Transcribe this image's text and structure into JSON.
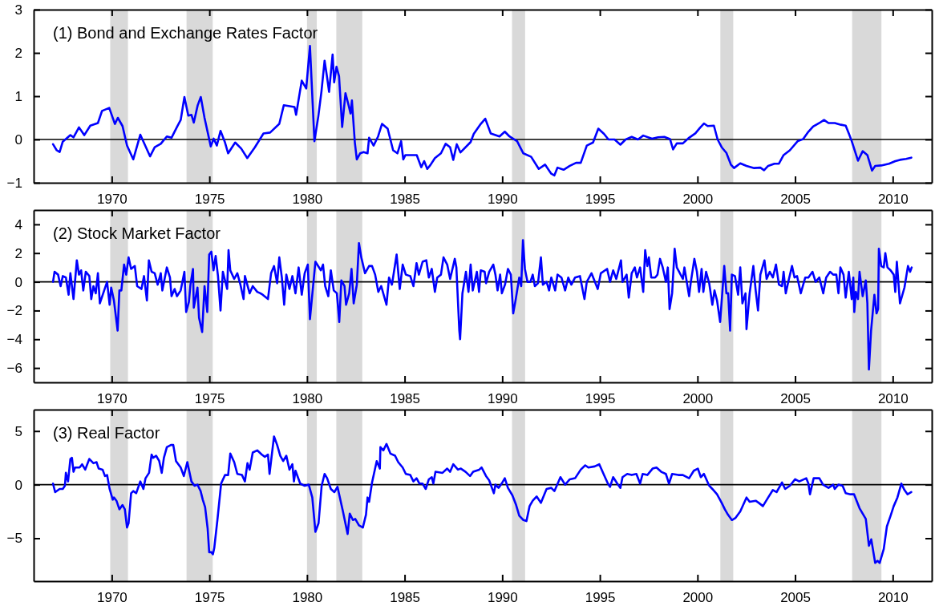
{
  "chart_data": [
    {
      "type": "line",
      "title": "(1) Bond and Exchange Rates Factor",
      "xlim": [
        1966,
        2012
      ],
      "xticks": [
        1970,
        1975,
        1980,
        1985,
        1990,
        1995,
        2000,
        2005,
        2010
      ],
      "ylim": [
        -1,
        3
      ],
      "yticks": [
        -1,
        0,
        1,
        2,
        3
      ],
      "grid": false,
      "marker": "none",
      "line_style": "solid",
      "color": "#0000ff",
      "ref_lines": [
        {
          "axis": "y",
          "value": 0,
          "color": "#000000"
        }
      ],
      "bands": [
        {
          "axis": "x",
          "from": 1969.92,
          "to": 1970.83,
          "color": "#d9d9d9"
        },
        {
          "axis": "x",
          "from": 1973.83,
          "to": 1975.17,
          "color": "#d9d9d9"
        },
        {
          "axis": "x",
          "from": 1980.0,
          "to": 1980.5,
          "color": "#d9d9d9"
        },
        {
          "axis": "x",
          "from": 1981.5,
          "to": 1982.83,
          "color": "#d9d9d9"
        },
        {
          "axis": "x",
          "from": 1990.5,
          "to": 1991.17,
          "color": "#d9d9d9"
        },
        {
          "axis": "x",
          "from": 2001.17,
          "to": 2001.83,
          "color": "#d9d9d9"
        },
        {
          "axis": "x",
          "from": 2007.92,
          "to": 2009.42,
          "color": "#d9d9d9"
        }
      ],
      "x": [
        1966.99,
        1967.18,
        1967.33,
        1967.49,
        1967.88,
        1968.04,
        1968.32,
        1968.59,
        1968.9,
        1969.29,
        1969.5,
        1969.87,
        1970.16,
        1970.31,
        1970.55,
        1970.78,
        1971.1,
        1971.46,
        1971.96,
        1972.2,
        1972.51,
        1972.82,
        1973.06,
        1973.34,
        1973.53,
        1973.72,
        1973.92,
        1974.08,
        1974.2,
        1974.4,
        1974.56,
        1974.75,
        1975.07,
        1975.22,
        1975.38,
        1975.57,
        1975.8,
        1975.96,
        1976.32,
        1976.63,
        1976.94,
        1977.33,
        1977.77,
        1978.11,
        1978.58,
        1978.81,
        1979.36,
        1979.44,
        1979.73,
        1979.96,
        1980.15,
        1980.38,
        1980.58,
        1980.74,
        1980.9,
        1981.02,
        1981.13,
        1981.31,
        1981.39,
        1981.51,
        1981.64,
        1981.8,
        1981.97,
        1982.13,
        1982.23,
        1982.3,
        1982.45,
        1982.55,
        1982.72,
        1982.9,
        1983.1,
        1983.18,
        1983.41,
        1983.64,
        1983.84,
        1984.13,
        1984.41,
        1984.63,
        1984.82,
        1984.93,
        1985.04,
        1985.31,
        1985.62,
        1985.85,
        1986.0,
        1986.16,
        1986.32,
        1986.55,
        1986.86,
        1987.1,
        1987.33,
        1987.49,
        1987.67,
        1987.86,
        1988.38,
        1988.54,
        1988.9,
        1989.13,
        1989.41,
        1989.86,
        1990.13,
        1990.37,
        1990.76,
        1991.08,
        1991.48,
        1991.87,
        1992.19,
        1992.51,
        1992.67,
        1992.83,
        1993.14,
        1993.46,
        1993.78,
        1994.02,
        1994.33,
        1994.65,
        1994.92,
        1995.21,
        1995.44,
        1995.75,
        1996.05,
        1996.32,
        1996.63,
        1996.95,
        1997.22,
        1997.67,
        1997.98,
        1998.3,
        1998.59,
        1998.75,
        1998.94,
        1999.25,
        1999.57,
        1999.89,
        2000.13,
        2000.33,
        2000.52,
        2000.84,
        2001.03,
        2001.24,
        2001.48,
        2001.71,
        2001.87,
        2002.19,
        2002.51,
        2002.9,
        2003.22,
        2003.41,
        2003.62,
        2003.94,
        2004.17,
        2004.41,
        2004.73,
        2005.13,
        2005.41,
        2005.68,
        2005.92,
        2006.24,
        2006.48,
        2006.71,
        2007.03,
        2007.35,
        2007.59,
        2007.75,
        2007.9,
        2008.22,
        2008.46,
        2008.7,
        2008.94,
        2009.1,
        2009.41,
        2009.81,
        2010.13,
        2010.37,
        2010.68,
        2010.95
      ],
      "values": [
        -0.11,
        -0.25,
        -0.29,
        -0.05,
        0.1,
        0.05,
        0.28,
        0.1,
        0.32,
        0.38,
        0.66,
        0.73,
        0.36,
        0.5,
        0.31,
        -0.14,
        -0.46,
        0.11,
        -0.39,
        -0.18,
        -0.1,
        0.07,
        0.04,
        0.29,
        0.45,
        0.98,
        0.55,
        0.57,
        0.39,
        0.79,
        0.98,
        0.5,
        -0.16,
        0.02,
        -0.14,
        0.2,
        -0.07,
        -0.32,
        -0.07,
        -0.21,
        -0.43,
        -0.18,
        0.14,
        0.16,
        0.36,
        0.79,
        0.75,
        0.57,
        1.36,
        1.18,
        2.16,
        -0.04,
        0.54,
        1.11,
        1.82,
        1.46,
        1.1,
        1.96,
        1.32,
        1.68,
        1.46,
        0.29,
        1.07,
        0.79,
        0.6,
        0.9,
        -0.07,
        -0.46,
        -0.32,
        -0.29,
        -0.32,
        0.04,
        -0.14,
        0.07,
        0.36,
        0.25,
        -0.25,
        -0.32,
        -0.04,
        -0.46,
        -0.36,
        -0.36,
        -0.36,
        -0.64,
        -0.5,
        -0.68,
        -0.59,
        -0.43,
        -0.32,
        -0.1,
        -0.18,
        -0.47,
        -0.11,
        -0.3,
        -0.06,
        0.13,
        0.36,
        0.48,
        0.14,
        0.07,
        0.18,
        0.07,
        -0.04,
        -0.32,
        -0.4,
        -0.68,
        -0.58,
        -0.79,
        -0.83,
        -0.65,
        -0.7,
        -0.61,
        -0.54,
        -0.54,
        -0.14,
        -0.07,
        0.25,
        0.13,
        0,
        0,
        -0.12,
        0,
        0.06,
        0,
        0.09,
        0.02,
        0.05,
        0.06,
        0.01,
        -0.23,
        -0.09,
        -0.09,
        0.04,
        0.14,
        0.27,
        0.37,
        0.31,
        0.32,
        0,
        -0.18,
        -0.31,
        -0.58,
        -0.66,
        -0.55,
        -0.61,
        -0.66,
        -0.65,
        -0.71,
        -0.61,
        -0.56,
        -0.56,
        -0.36,
        -0.25,
        -0.04,
        0.01,
        0.18,
        0.3,
        0.38,
        0.45,
        0.38,
        0.38,
        0.34,
        0.32,
        0.14,
        -0.04,
        -0.49,
        -0.27,
        -0.36,
        -0.72,
        -0.61,
        -0.6,
        -0.56,
        -0.5,
        -0.47,
        -0.45,
        -0.42
      ]
    },
    {
      "type": "line",
      "title": "(2) Stock Market Factor",
      "xlim": [
        1966,
        2012
      ],
      "xticks": [
        1970,
        1975,
        1980,
        1985,
        1990,
        1995,
        2000,
        2005,
        2010
      ],
      "ylim": [
        -7,
        5
      ],
      "yticks": [
        -6,
        -4,
        -2,
        0,
        2,
        4
      ],
      "grid": false,
      "marker": "none",
      "line_style": "solid",
      "color": "#0000ff",
      "ref_lines": [
        {
          "axis": "y",
          "value": 0,
          "color": "#000000"
        }
      ],
      "bands": [
        {
          "axis": "x",
          "from": 1969.92,
          "to": 1970.83,
          "color": "#d9d9d9"
        },
        {
          "axis": "x",
          "from": 1973.83,
          "to": 1975.17,
          "color": "#d9d9d9"
        },
        {
          "axis": "x",
          "from": 1980.0,
          "to": 1980.5,
          "color": "#d9d9d9"
        },
        {
          "axis": "x",
          "from": 1981.5,
          "to": 1982.83,
          "color": "#d9d9d9"
        },
        {
          "axis": "x",
          "from": 1990.5,
          "to": 1991.17,
          "color": "#d9d9d9"
        },
        {
          "axis": "x",
          "from": 2001.17,
          "to": 2001.83,
          "color": "#d9d9d9"
        },
        {
          "axis": "x",
          "from": 2007.92,
          "to": 2009.42,
          "color": "#d9d9d9"
        }
      ],
      "x": [
        1966.99,
        1967.07,
        1967.25,
        1967.38,
        1967.49,
        1967.65,
        1967.79,
        1967.88,
        1968.04,
        1968.21,
        1968.32,
        1968.43,
        1968.54,
        1968.67,
        1968.85,
        1968.95,
        1969.06,
        1969.18,
        1969.29,
        1969.39,
        1969.61,
        1969.76,
        1969.89,
        1969.97,
        1970.11,
        1970.3,
        1970.39,
        1970.49,
        1970.63,
        1970.74,
        1970.86,
        1970.99,
        1971.18,
        1971.3,
        1971.52,
        1971.65,
        1971.8,
        1971.9,
        1972.04,
        1972.2,
        1972.35,
        1972.51,
        1972.59,
        1972.82,
        1972.98,
        1973.06,
        1973.22,
        1973.34,
        1973.53,
        1973.72,
        1973.81,
        1973.95,
        1974.03,
        1974.16,
        1974.2,
        1974.39,
        1974.47,
        1974.63,
        1974.75,
        1974.89,
        1974.99,
        1975.1,
        1975.21,
        1975.32,
        1975.44,
        1975.57,
        1975.69,
        1975.91,
        1975.98,
        1976.07,
        1976.27,
        1976.43,
        1976.59,
        1976.75,
        1976.82,
        1977.06,
        1977.22,
        1977.45,
        1977.61,
        1977.73,
        1978.0,
        1978.16,
        1978.31,
        1978.47,
        1978.58,
        1978.71,
        1978.83,
        1978.94,
        1979.1,
        1979.25,
        1979.41,
        1979.57,
        1979.73,
        1979.88,
        1980.04,
        1980.15,
        1980.43,
        1980.71,
        1980.82,
        1980.93,
        1981.09,
        1981.22,
        1981.37,
        1981.53,
        1981.65,
        1981.76,
        1981.92,
        1982.0,
        1982.16,
        1982.28,
        1982.39,
        1982.55,
        1982.66,
        1982.78,
        1982.97,
        1983.18,
        1983.33,
        1983.49,
        1983.65,
        1983.8,
        1984.07,
        1984.2,
        1984.35,
        1984.59,
        1984.75,
        1984.9,
        1985.06,
        1985.29,
        1985.45,
        1985.61,
        1985.73,
        1985.92,
        1986.11,
        1986.24,
        1986.39,
        1986.55,
        1986.67,
        1986.86,
        1986.99,
        1987.18,
        1987.33,
        1987.57,
        1987.65,
        1987.8,
        1987.84,
        1987.96,
        1988.14,
        1988.27,
        1988.38,
        1988.49,
        1988.7,
        1988.81,
        1988.9,
        1989.1,
        1989.17,
        1989.33,
        1989.54,
        1989.65,
        1989.76,
        1989.89,
        1989.98,
        1990.14,
        1990.29,
        1990.44,
        1990.56,
        1990.68,
        1990.87,
        1990.97,
        1991.06,
        1991.16,
        1991.29,
        1991.44,
        1991.56,
        1991.67,
        1991.83,
        1991.98,
        1992.08,
        1992.27,
        1992.4,
        1992.51,
        1992.71,
        1992.83,
        1993.03,
        1993.22,
        1993.38,
        1993.54,
        1993.73,
        1993.98,
        1994.21,
        1994.33,
        1994.57,
        1994.89,
        1995.05,
        1995.37,
        1995.52,
        1995.68,
        1995.84,
        1996.08,
        1996.16,
        1996.37,
        1996.48,
        1996.63,
        1996.79,
        1996.9,
        1997.06,
        1997.22,
        1997.32,
        1997.43,
        1997.51,
        1997.63,
        1997.83,
        1997.95,
        1998.08,
        1998.22,
        1998.38,
        1998.48,
        1998.57,
        1998.7,
        1998.83,
        1998.94,
        1999.06,
        1999.25,
        1999.33,
        1999.57,
        1999.65,
        1999.84,
        1999.97,
        2000.08,
        2000.21,
        2000.3,
        2000.44,
        2000.6,
        2000.76,
        2000.87,
        2001.0,
        2001.16,
        2001.37,
        2001.48,
        2001.57,
        2001.67,
        2001.76,
        2001.92,
        2002.08,
        2002.19,
        2002.3,
        2002.46,
        2002.51,
        2002.67,
        2002.86,
        2002.98,
        2003.1,
        2003.22,
        2003.43,
        2003.54,
        2003.7,
        2003.86,
        2004.02,
        2004.17,
        2004.33,
        2004.41,
        2004.52,
        2004.65,
        2004.84,
        2004.97,
        2005.1,
        2005.29,
        2005.52,
        2005.68,
        2005.89,
        2006.05,
        2006.24,
        2006.44,
        2006.59,
        2006.79,
        2006.95,
        2007.11,
        2007.22,
        2007.32,
        2007.48,
        2007.59,
        2007.75,
        2007.9,
        2007.98,
        2008.03,
        2008.11,
        2008.22,
        2008.3,
        2008.46,
        2008.62,
        2008.7,
        2008.78,
        2008.89,
        2009.06,
        2009.17,
        2009.25,
        2009.29,
        2009.41,
        2009.54,
        2009.62,
        2009.73,
        2009.89,
        2010.05,
        2010.13,
        2010.21,
        2010.37,
        2010.6,
        2010.78,
        2010.89,
        2010.97
      ],
      "values": [
        0.0,
        0.7,
        0.5,
        -0.3,
        0.4,
        0.3,
        -0.9,
        0.6,
        -1.2,
        1.5,
        0.5,
        0.8,
        -0.6,
        0.7,
        0.4,
        -1.2,
        -0.3,
        -0.8,
        0.6,
        -1.5,
        -0.6,
        0.0,
        -1.6,
        -0.4,
        -1.3,
        -3.4,
        -0.6,
        -0.6,
        1.2,
        0.5,
        1.7,
        0.9,
        1.1,
        -0.3,
        -0.5,
        0.4,
        -1.3,
        1.5,
        0.7,
        0.6,
        -0.2,
        0.6,
        -0.6,
        1.0,
        0.3,
        -1.0,
        -0.5,
        -1.0,
        -0.6,
        0.7,
        -2.1,
        -1.4,
        -0.2,
        0.9,
        -1.8,
        -0.4,
        -2.5,
        -3.5,
        -0.3,
        -2.1,
        1.9,
        2.1,
        0.8,
        1.8,
        0.4,
        -2.0,
        0.7,
        -0.5,
        2.2,
        0.8,
        0.2,
        0.6,
        -0.2,
        -1.2,
        0.4,
        -0.8,
        -0.3,
        -0.7,
        -0.8,
        -0.9,
        -1.2,
        0.6,
        1.1,
        -0.1,
        1.7,
        0.3,
        -1.6,
        0.5,
        -0.5,
        0.4,
        -0.8,
        1.0,
        -0.9,
        0.6,
        1.2,
        -2.6,
        1.4,
        0.8,
        1.2,
        -0.3,
        -1.0,
        0.8,
        -0.6,
        -0.8,
        -2.8,
        0.1,
        -0.3,
        -1.6,
        -0.8,
        0.9,
        -1.5,
        -0.2,
        2.7,
        1.7,
        0.6,
        1.1,
        1.1,
        0.5,
        -0.7,
        -0.3,
        -1.6,
        0.3,
        -0.2,
        1.9,
        -0.5,
        1.2,
        0.5,
        0.4,
        -0.3,
        1.3,
        0.5,
        1.4,
        1.5,
        0.3,
        0.9,
        -0.7,
        0.3,
        0.5,
        1.7,
        1.2,
        0.2,
        1.6,
        1.0,
        -3.4,
        -4.0,
        -0.8,
        0.7,
        -0.7,
        1.2,
        -0.6,
        0.7,
        -0.7,
        0.8,
        0.7,
        -0.1,
        0.7,
        1.2,
        0.5,
        -0.6,
        0.5,
        -0.8,
        -0.2,
        0.9,
        0.5,
        -2.2,
        -1.3,
        0.3,
        -0.3,
        2.9,
        0.9,
        0.0,
        0.0,
        0.5,
        -0.3,
        -0.1,
        1.7,
        -0.2,
        0.0,
        -0.6,
        0.3,
        -0.6,
        0.5,
        0.3,
        -0.6,
        0.3,
        -0.2,
        0.3,
        0.4,
        -1.2,
        0.0,
        0.6,
        -0.5,
        0.6,
        0.9,
        0.0,
        0.8,
        0.2,
        1.5,
        0.0,
        0.5,
        -1.1,
        0.6,
        1.0,
        0.3,
        1.0,
        -0.7,
        2.2,
        1.1,
        1.7,
        0.3,
        0.3,
        0.5,
        1.6,
        1.0,
        0.0,
        1.0,
        -1.9,
        -0.8,
        2.3,
        1.0,
        0.7,
        0.2,
        1.0,
        -1.0,
        -0.1,
        1.6,
        0.7,
        -0.7,
        0.9,
        -0.7,
        0.7,
        -0.1,
        -1.6,
        -0.6,
        -1.3,
        -2.8,
        1.1,
        -0.8,
        -0.8,
        -3.4,
        0.5,
        0.4,
        -0.9,
        1.0,
        -1.5,
        -0.8,
        -3.3,
        -0.8,
        1.1,
        -0.6,
        -2.0,
        0.5,
        1.5,
        0.2,
        0.7,
        0.3,
        1.2,
        -0.2,
        -0.3,
        0.7,
        -0.8,
        0.0,
        1.1,
        0.3,
        0.4,
        -0.8,
        0.3,
        0.3,
        0.7,
        0.0,
        0.3,
        -0.8,
        0.3,
        0.7,
        0.5,
        0.5,
        -0.8,
        1.0,
        0.5,
        -1.1,
        0.7,
        -1.2,
        0.3,
        -2.1,
        -0.7,
        -1.2,
        0.7,
        -1.0,
        0.1,
        -1.5,
        -6.1,
        -3.4,
        -0.9,
        -2.2,
        -1.9,
        2.3,
        1.1,
        1.0,
        2.0,
        1.0,
        0.8,
        0.5,
        -0.7,
        1.4,
        -1.5,
        -0.4,
        1.1,
        0.7,
        1.0
      ]
    },
    {
      "type": "line",
      "title": "(3) Real Factor",
      "xlim": [
        1966,
        2012
      ],
      "xticks": [
        1970,
        1975,
        1980,
        1985,
        1990,
        1995,
        2000,
        2005,
        2010
      ],
      "ylim": [
        -9,
        7
      ],
      "yticks": [
        -5,
        0,
        5
      ],
      "grid": false,
      "marker": "none",
      "line_style": "solid",
      "color": "#0000ff",
      "ref_lines": [
        {
          "axis": "y",
          "value": 0,
          "color": "#000000"
        }
      ],
      "bands": [
        {
          "axis": "x",
          "from": 1969.92,
          "to": 1970.83,
          "color": "#d9d9d9"
        },
        {
          "axis": "x",
          "from": 1973.83,
          "to": 1975.17,
          "color": "#d9d9d9"
        },
        {
          "axis": "x",
          "from": 1980.0,
          "to": 1980.5,
          "color": "#d9d9d9"
        },
        {
          "axis": "x",
          "from": 1981.5,
          "to": 1982.83,
          "color": "#d9d9d9"
        },
        {
          "axis": "x",
          "from": 1990.5,
          "to": 1991.17,
          "color": "#d9d9d9"
        },
        {
          "axis": "x",
          "from": 2001.17,
          "to": 2001.83,
          "color": "#d9d9d9"
        },
        {
          "axis": "x",
          "from": 2007.92,
          "to": 2009.42,
          "color": "#d9d9d9"
        }
      ],
      "x": [
        1966.99,
        1967.1,
        1967.33,
        1967.49,
        1967.6,
        1967.65,
        1967.76,
        1967.88,
        1967.96,
        1968.04,
        1968.12,
        1968.35,
        1968.48,
        1968.64,
        1968.85,
        1969.06,
        1969.22,
        1969.33,
        1969.53,
        1969.65,
        1969.76,
        1969.89,
        1970.05,
        1970.11,
        1970.24,
        1970.39,
        1970.55,
        1970.67,
        1970.78,
        1970.86,
        1970.99,
        1971.1,
        1971.25,
        1971.46,
        1971.62,
        1971.73,
        1971.91,
        1972.04,
        1972.12,
        1972.27,
        1972.43,
        1972.56,
        1972.67,
        1972.82,
        1973.03,
        1973.15,
        1973.29,
        1973.53,
        1973.69,
        1973.87,
        1974.08,
        1974.24,
        1974.39,
        1974.55,
        1974.66,
        1974.78,
        1974.91,
        1974.99,
        1975.1,
        1975.18,
        1975.25,
        1975.41,
        1975.6,
        1975.8,
        1975.96,
        1976.07,
        1976.27,
        1976.43,
        1976.67,
        1976.82,
        1976.95,
        1977.06,
        1977.22,
        1977.45,
        1977.69,
        1977.84,
        1978.0,
        1978.08,
        1978.31,
        1978.47,
        1978.63,
        1978.78,
        1978.94,
        1979.1,
        1979.25,
        1979.33,
        1979.41,
        1979.65,
        1979.88,
        1980.09,
        1980.27,
        1980.43,
        1980.59,
        1980.75,
        1980.9,
        1981.03,
        1981.22,
        1981.4,
        1981.56,
        1981.84,
        1982.08,
        1982.19,
        1982.35,
        1982.47,
        1982.66,
        1982.86,
        1983.02,
        1983.1,
        1983.18,
        1983.33,
        1983.57,
        1983.73,
        1983.76,
        1983.91,
        1984.07,
        1984.27,
        1984.51,
        1984.67,
        1984.9,
        1985.06,
        1985.29,
        1985.45,
        1985.61,
        1985.76,
        1985.92,
        1986.08,
        1986.24,
        1986.39,
        1986.47,
        1986.58,
        1986.94,
        1987.18,
        1987.33,
        1987.49,
        1987.73,
        1987.88,
        1988.12,
        1988.35,
        1988.51,
        1988.82,
        1988.94,
        1989.17,
        1989.33,
        1989.57,
        1989.65,
        1989.81,
        1989.97,
        1990.13,
        1990.29,
        1990.52,
        1990.71,
        1990.87,
        1991.08,
        1991.24,
        1991.4,
        1991.56,
        1991.76,
        1991.98,
        1992.27,
        1992.51,
        1992.67,
        1992.98,
        1993.22,
        1993.46,
        1993.73,
        1994.02,
        1994.25,
        1994.41,
        1994.73,
        1994.97,
        1995.21,
        1995.41,
        1995.52,
        1995.68,
        1995.89,
        1996.05,
        1996.16,
        1996.4,
        1996.63,
        1996.87,
        1997.06,
        1997.19,
        1997.43,
        1997.7,
        1997.9,
        1998.14,
        1998.38,
        1998.54,
        1998.7,
        1999.02,
        1999.25,
        1999.57,
        1999.81,
        2000.02,
        2000.17,
        2000.33,
        2000.6,
        2000.76,
        2001.0,
        2001.24,
        2001.4,
        2001.56,
        2001.76,
        2001.95,
        2002.19,
        2002.51,
        2002.67,
        2002.98,
        2003.14,
        2003.35,
        2003.62,
        2003.86,
        2004.05,
        2004.33,
        2004.49,
        2004.73,
        2005.0,
        2005.21,
        2005.57,
        2005.68,
        2005.76,
        2005.95,
        2006.24,
        2006.43,
        2006.71,
        2006.95,
        2007.03,
        2007.22,
        2007.43,
        2007.59,
        2007.83,
        2008.02,
        2008.3,
        2008.62,
        2008.78,
        2008.9,
        2009.1,
        2009.22,
        2009.33,
        2009.54,
        2009.7,
        2009.89,
        2010.05,
        2010.24,
        2010.44,
        2010.6,
        2010.76,
        2010.95
      ],
      "values": [
        0.1,
        -0.7,
        -0.4,
        -0.4,
        -0.1,
        1.1,
        0.3,
        2.4,
        2.5,
        1.2,
        1.6,
        1.6,
        1.9,
        1.4,
        2.4,
        2.0,
        2.1,
        1.5,
        1.4,
        0.8,
        0.9,
        -0.4,
        -1.4,
        -1.2,
        -1.5,
        -2.3,
        -1.9,
        -2.3,
        -4.0,
        -3.6,
        -0.8,
        -0.6,
        -0.8,
        0.3,
        -0.4,
        0.6,
        1.1,
        2.8,
        2.5,
        2.7,
        2.2,
        1.1,
        2.5,
        3.5,
        3.7,
        3.7,
        2.2,
        1.6,
        0.8,
        2.1,
        0.3,
        -0.1,
        0.0,
        -0.6,
        -1.4,
        -2.1,
        -4.1,
        -6.3,
        -6.3,
        -6.5,
        -5.9,
        -3.3,
        0.1,
        0.9,
        0.9,
        2.9,
        2.1,
        1.0,
        0.9,
        0.3,
        2.0,
        1.4,
        3.0,
        3.2,
        2.8,
        2.6,
        2.8,
        1.0,
        4.5,
        3.7,
        2.7,
        2.2,
        2.7,
        1.4,
        1.9,
        0.3,
        1.3,
        0.1,
        -0.1,
        0.0,
        -1.2,
        -4.4,
        -3.6,
        -0.1,
        1.0,
        0.6,
        -0.4,
        -0.7,
        -0.2,
        -2.5,
        -4.6,
        -2.7,
        -3.3,
        -3.2,
        -3.8,
        -4.0,
        -2.8,
        -1.2,
        -1.6,
        0.2,
        2.2,
        1.5,
        3.5,
        3.2,
        3.8,
        2.9,
        2.7,
        2.1,
        1.6,
        1.0,
        0.9,
        0.3,
        0.6,
        0.1,
        0.1,
        -0.4,
        0.5,
        0.7,
        0.1,
        1.2,
        1.1,
        1.5,
        1.2,
        1.9,
        1.4,
        1.5,
        1.2,
        0.8,
        1.2,
        1.4,
        1.6,
        0.8,
        0.4,
        -0.8,
        0.0,
        -0.3,
        0.1,
        0.6,
        -0.3,
        -1.0,
        -1.9,
        -2.9,
        -3.3,
        -3.4,
        -2.0,
        -1.5,
        -1.1,
        -1.7,
        -0.4,
        -0.3,
        -0.6,
        0.7,
        0.0,
        0.5,
        0.6,
        1.4,
        1.8,
        1.6,
        1.7,
        1.9,
        0.9,
        0.1,
        -0.2,
        0.7,
        0.1,
        -0.3,
        0.7,
        1.0,
        0.9,
        1.0,
        0.1,
        1.0,
        0.9,
        1.5,
        1.6,
        1.2,
        1.0,
        0.1,
        1.0,
        0.9,
        0.9,
        0.6,
        1.3,
        1.5,
        0.7,
        1.0,
        -0.1,
        -0.4,
        -0.9,
        -1.7,
        -2.3,
        -2.8,
        -3.3,
        -3.1,
        -2.5,
        -1.2,
        -1.6,
        -1.5,
        -1.7,
        -2.0,
        -1.2,
        -0.5,
        -0.7,
        0.2,
        -0.4,
        -0.1,
        0.5,
        0.3,
        0.6,
        0.1,
        -0.9,
        0.6,
        0.6,
        0.0,
        -0.3,
        0.0,
        -0.4,
        0.0,
        -0.1,
        -0.8,
        -0.9,
        -0.9,
        -2.2,
        -3.2,
        -5.7,
        -5.1,
        -7.3,
        -7.1,
        -7.3,
        -6.0,
        -3.9,
        -2.9,
        -2.0,
        -1.2,
        0.1,
        -0.5,
        -0.9,
        -0.7
      ]
    }
  ]
}
